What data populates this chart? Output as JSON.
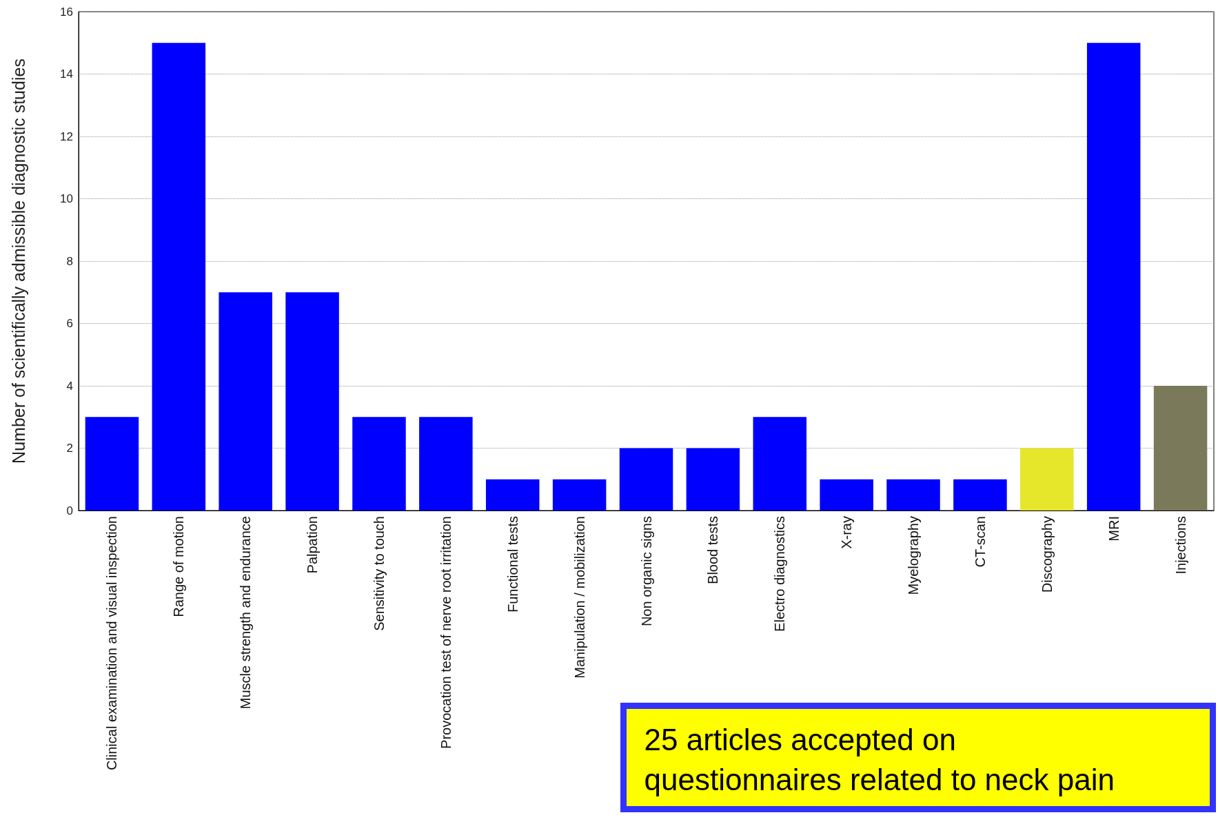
{
  "chart_data": {
    "type": "bar",
    "ylabel": "Number of scientifically admissible diagnostic studies",
    "categories": [
      "Clinical examination and visual inspection",
      "Range of motion",
      "Muscle strength and endurance",
      "Palpation",
      "Sensitivity to touch",
      "Provocation test of nerve root irritation",
      "Functional tests",
      "Manipulation / mobilization",
      "Non organic signs",
      "Blood tests",
      "Electro diagnostics",
      "X-ray",
      "Myelography",
      "CT-scan",
      "Discography",
      "MRI",
      "Injections"
    ],
    "values": [
      3,
      15,
      7,
      7,
      3,
      3,
      1,
      1,
      2,
      2,
      3,
      1,
      1,
      1,
      2,
      15,
      4
    ],
    "colors": [
      "#0000ff",
      "#0000ff",
      "#0000ff",
      "#0000ff",
      "#0000ff",
      "#0000ff",
      "#0000ff",
      "#0000ff",
      "#0000ff",
      "#0000ff",
      "#0000ff",
      "#0000ff",
      "#0000ff",
      "#0000ff",
      "#e6e62a",
      "#0000ff",
      "#7a7a5a"
    ],
    "ylim": [
      0,
      16
    ],
    "yticks": [
      0,
      2,
      4,
      6,
      8,
      10,
      12,
      14,
      16
    ],
    "grid": "y",
    "annotations": [
      "25 articles accepted on\nquestionnaires related to neck pain"
    ]
  }
}
